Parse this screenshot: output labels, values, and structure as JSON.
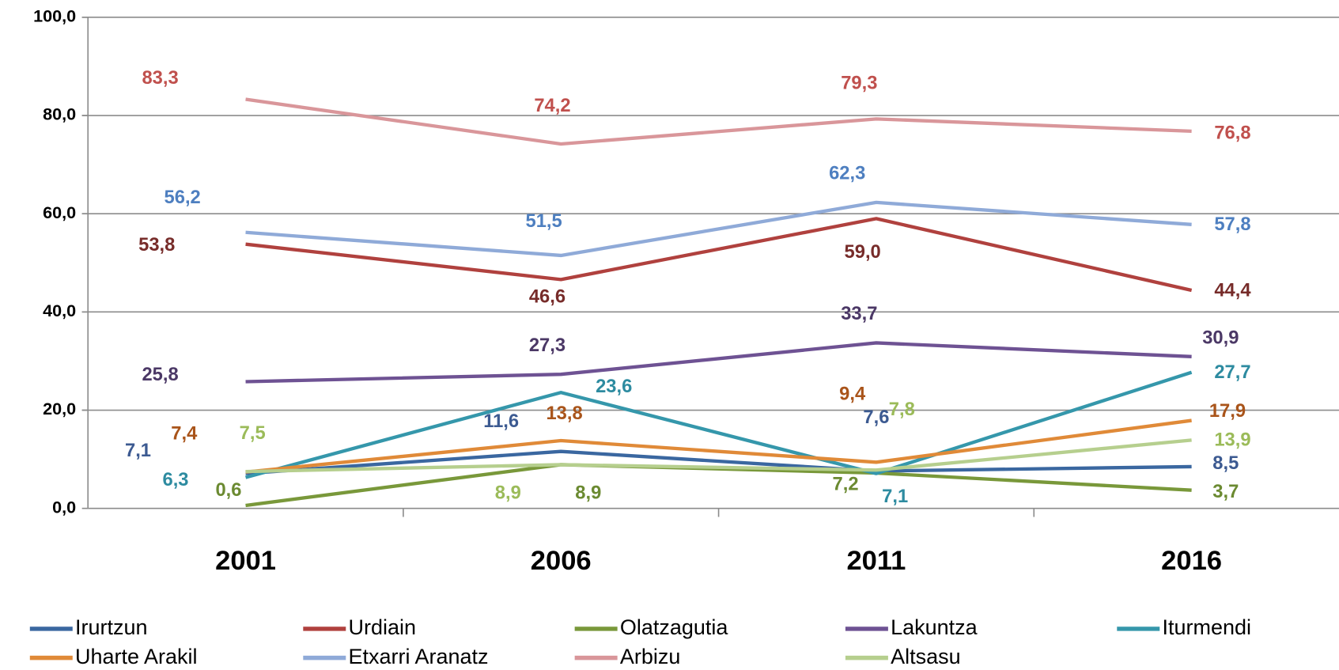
{
  "chart_data": {
    "type": "line",
    "categories": [
      "2001",
      "2006",
      "2011",
      "2016"
    ],
    "ylim": [
      0,
      100
    ],
    "yticks": [
      {
        "value": 0,
        "label": "0,0"
      },
      {
        "value": 20,
        "label": "20,0"
      },
      {
        "value": 40,
        "label": "40,0"
      },
      {
        "value": 60,
        "label": "60,0"
      },
      {
        "value": 80,
        "label": "80,0"
      },
      {
        "value": 100,
        "label": "100,0"
      }
    ],
    "grid": true,
    "legend": "bottom",
    "series": [
      {
        "name": "Irurtzun",
        "color": "#3a67a0",
        "label_color": "#3c5a91",
        "values": [
          7.1,
          11.6,
          7.6,
          8.5
        ],
        "value_labels": [
          "7,1",
          "11,6",
          "7,6",
          "8,5"
        ]
      },
      {
        "name": "Urdiain",
        "color": "#b0413e",
        "label_color": "#772c2a",
        "values": [
          53.8,
          46.6,
          59.0,
          44.4
        ],
        "value_labels": [
          "53,8",
          "46,6",
          "59,0",
          "44,4"
        ]
      },
      {
        "name": "Olatzagutia",
        "color": "#79983a",
        "label_color": "#6b8a31",
        "values": [
          0.6,
          8.9,
          7.2,
          3.7
        ],
        "value_labels": [
          "0,6",
          "8,9",
          "7,2",
          "3,7"
        ]
      },
      {
        "name": "Lakuntza",
        "color": "#6e5293",
        "label_color": "#4b3866",
        "values": [
          25.8,
          27.3,
          33.7,
          30.9
        ],
        "value_labels": [
          "25,8",
          "27,3",
          "33,7",
          "30,9"
        ]
      },
      {
        "name": "Iturmendi",
        "color": "#3597ab",
        "label_color": "#2d8ba0",
        "values": [
          6.3,
          23.6,
          7.1,
          27.7
        ],
        "value_labels": [
          "6,3",
          "23,6",
          "7,1",
          "27,7"
        ]
      },
      {
        "name": "Uharte Arakil",
        "color": "#e08a38",
        "label_color": "#a9541a",
        "values": [
          7.4,
          13.8,
          9.4,
          17.9
        ],
        "value_labels": [
          "7,4",
          "13,8",
          "9,4",
          "17,9"
        ]
      },
      {
        "name": "Etxarri Aranatz",
        "color": "#8faad8",
        "label_color": "#4e7fc0",
        "values": [
          56.2,
          51.5,
          62.3,
          57.8
        ],
        "value_labels": [
          "56,2",
          "51,5",
          "62,3",
          "57,8"
        ]
      },
      {
        "name": "Arbizu",
        "color": "#d9969a",
        "label_color": "#c0504d",
        "values": [
          83.3,
          74.2,
          79.3,
          76.8
        ],
        "value_labels": [
          "83,3",
          "74,2",
          "79,3",
          "76,8"
        ]
      },
      {
        "name": "Altsasu",
        "color": "#b6cf8e",
        "label_color": "#9bbb59",
        "values": [
          7.5,
          8.9,
          7.8,
          13.9
        ],
        "value_labels": [
          "7,5",
          "8,9",
          "7,8",
          "13,9"
        ]
      }
    ]
  }
}
